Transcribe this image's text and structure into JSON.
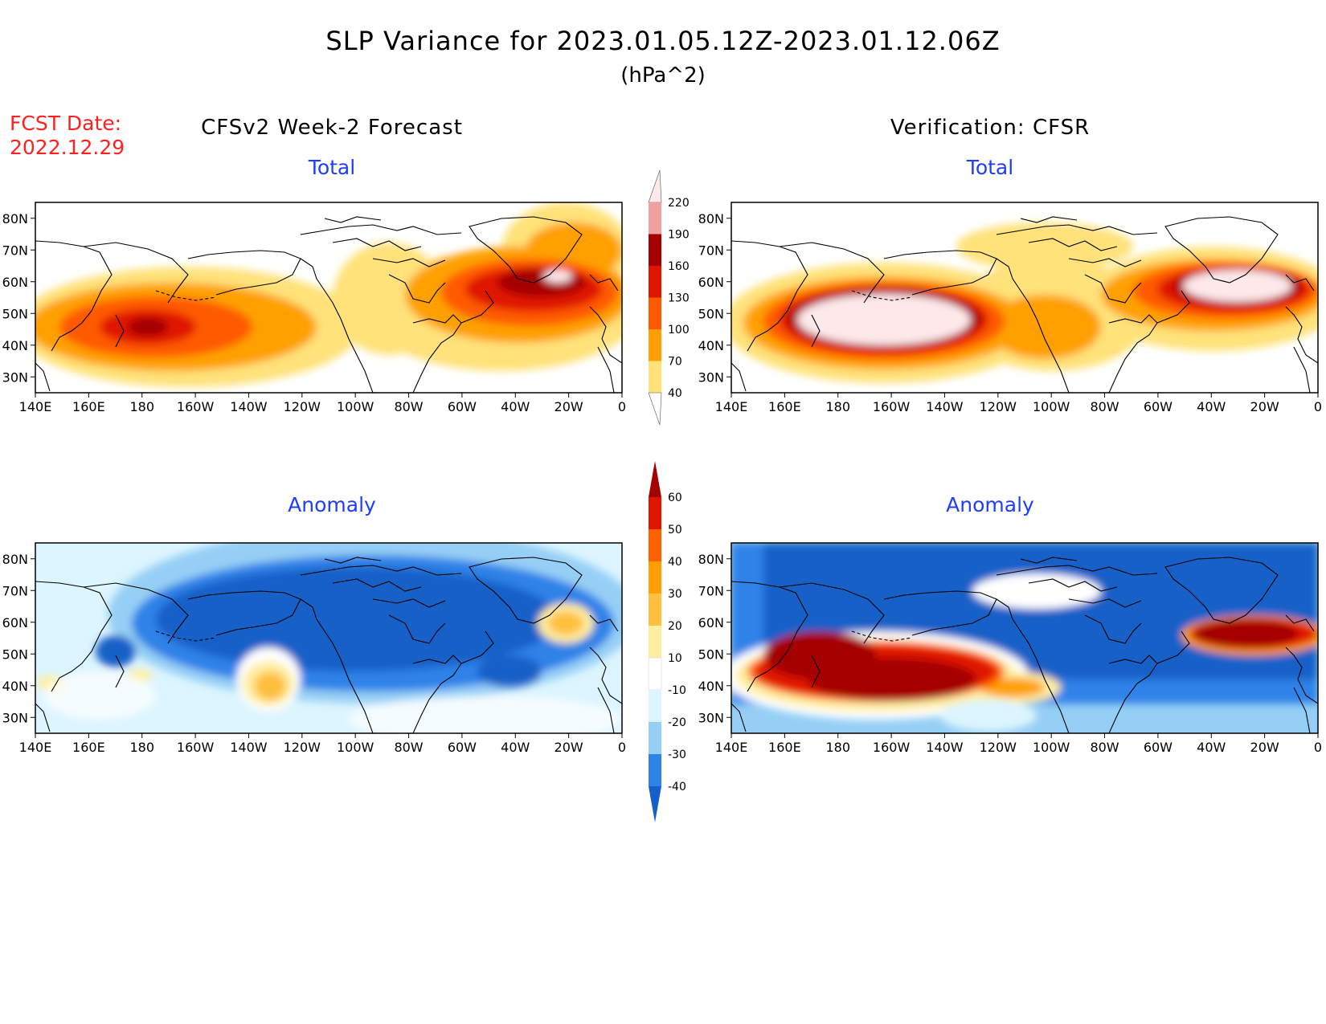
{
  "title": "SLP Variance for 2023.01.05.12Z-2023.01.12.06Z",
  "units": "(hPa^2)",
  "fcst_date_label": "FCST Date:",
  "fcst_date_value": "2022.12.29",
  "columns": {
    "left": "CFSv2 Week-2 Forecast",
    "right": "Verification: CFSR"
  },
  "panels": [
    {
      "id": "fcst-total",
      "subtitle": "Total",
      "scale": "total"
    },
    {
      "id": "verif-total",
      "subtitle": "Total",
      "scale": "total"
    },
    {
      "id": "fcst-anomaly",
      "subtitle": "Anomaly",
      "scale": "anomaly"
    },
    {
      "id": "verif-anomaly",
      "subtitle": "Anomaly",
      "scale": "anomaly"
    }
  ],
  "axes": {
    "lon_ticks": [
      "140E",
      "160E",
      "180",
      "160W",
      "140W",
      "120W",
      "100W",
      "80W",
      "60W",
      "40W",
      "20W",
      "0"
    ],
    "lat_ticks": [
      "80N",
      "70N",
      "60N",
      "50N",
      "40N",
      "30N"
    ],
    "lon_range": [
      140,
      360
    ],
    "lat_range": [
      25,
      85
    ]
  },
  "colorbars": {
    "total": {
      "labels": [
        "220",
        "190",
        "160",
        "130",
        "100",
        "70",
        "40"
      ],
      "levels": [
        40,
        70,
        100,
        130,
        160,
        190,
        220
      ],
      "colors": [
        "#ffe27a",
        "#ffa000",
        "#ff5a00",
        "#e01500",
        "#a50000",
        "#f0a0a0",
        "#fde8ea"
      ]
    },
    "anomaly": {
      "labels": [
        "60",
        "50",
        "40",
        "30",
        "20",
        "10",
        "-10",
        "-20",
        "-30",
        "-40"
      ],
      "levels": [
        -40,
        -30,
        -20,
        -10,
        10,
        20,
        30,
        40,
        50,
        60
      ],
      "colors": [
        "#1460c8",
        "#2e82e8",
        "#96cff5",
        "#dcf5ff",
        "#ffffff",
        "#ffeea0",
        "#ffc040",
        "#ffa000",
        "#ff6000",
        "#e01500",
        "#a50000"
      ]
    }
  }
}
